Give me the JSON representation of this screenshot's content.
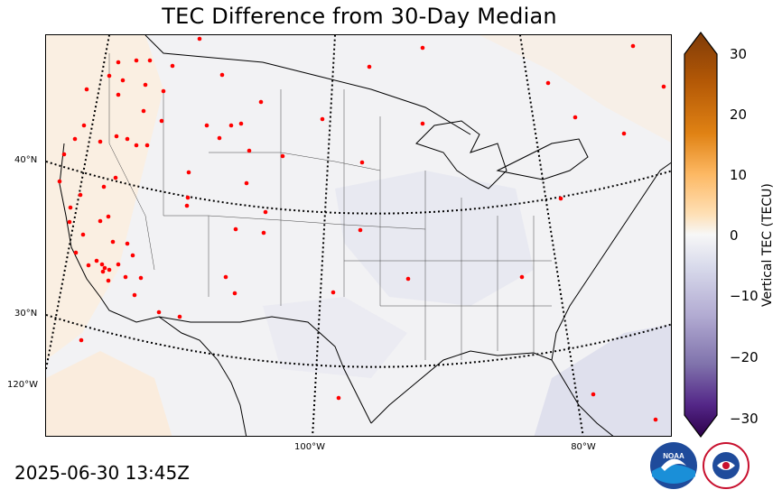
{
  "title": "TEC Difference from 30-Day Median",
  "timestamp": "2025-06-30 13:45Z",
  "map": {
    "lat_labels": [
      "40°N",
      "30°N",
      "120°W"
    ],
    "lon_labels": [
      "100°W",
      "80°W"
    ],
    "station_color": "#ff0000",
    "background_color": "#f2f2f4"
  },
  "colorbar": {
    "label": "Vertical TEC (TECU)",
    "ticks": [
      "30",
      "20",
      "10",
      "0",
      "−10",
      "−20",
      "−30"
    ],
    "range": [
      -30,
      30
    ],
    "colors": {
      "positive_max": "#7f3b08",
      "zero": "#f7f7f7",
      "negative_max": "#2d004b"
    }
  },
  "logos": {
    "noaa": "NOAA",
    "nws": "NATIONAL WEATHER SERVICE"
  }
}
